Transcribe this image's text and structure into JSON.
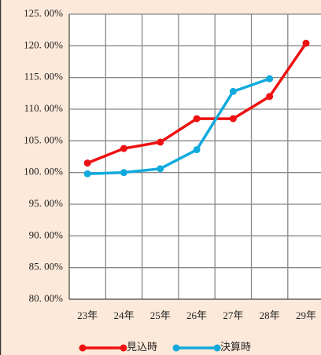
{
  "chart_data": {
    "type": "line",
    "categories": [
      "23年",
      "24年",
      "25年",
      "26年",
      "27年",
      "28年",
      "29年"
    ],
    "series": [
      {
        "name": "見込時",
        "color": "#ee1111",
        "values": [
          101.5,
          103.8,
          104.8,
          108.5,
          108.5,
          112,
          120.4
        ]
      },
      {
        "name": "決算時",
        "color": "#11aadd",
        "values": [
          99.8,
          100,
          100.6,
          103.6,
          112.8,
          114.8,
          null
        ]
      }
    ],
    "ylim": [
      80,
      125
    ],
    "yticks": [
      {
        "value": 80,
        "label": "80. 00%"
      },
      {
        "value": 85,
        "label": "85. 00%"
      },
      {
        "value": 90,
        "label": "90. 00%"
      },
      {
        "value": 95,
        "label": "95. 00%"
      },
      {
        "value": 100,
        "label": "100. 00%"
      },
      {
        "value": 105,
        "label": "105. 00%"
      },
      {
        "value": 110,
        "label": "110. 00%"
      },
      {
        "value": 115,
        "label": "115. 00%"
      },
      {
        "value": 120,
        "label": "120. 00%"
      },
      {
        "value": 125,
        "label": "125. 00%"
      }
    ],
    "grid": true,
    "legend": "bottom"
  }
}
